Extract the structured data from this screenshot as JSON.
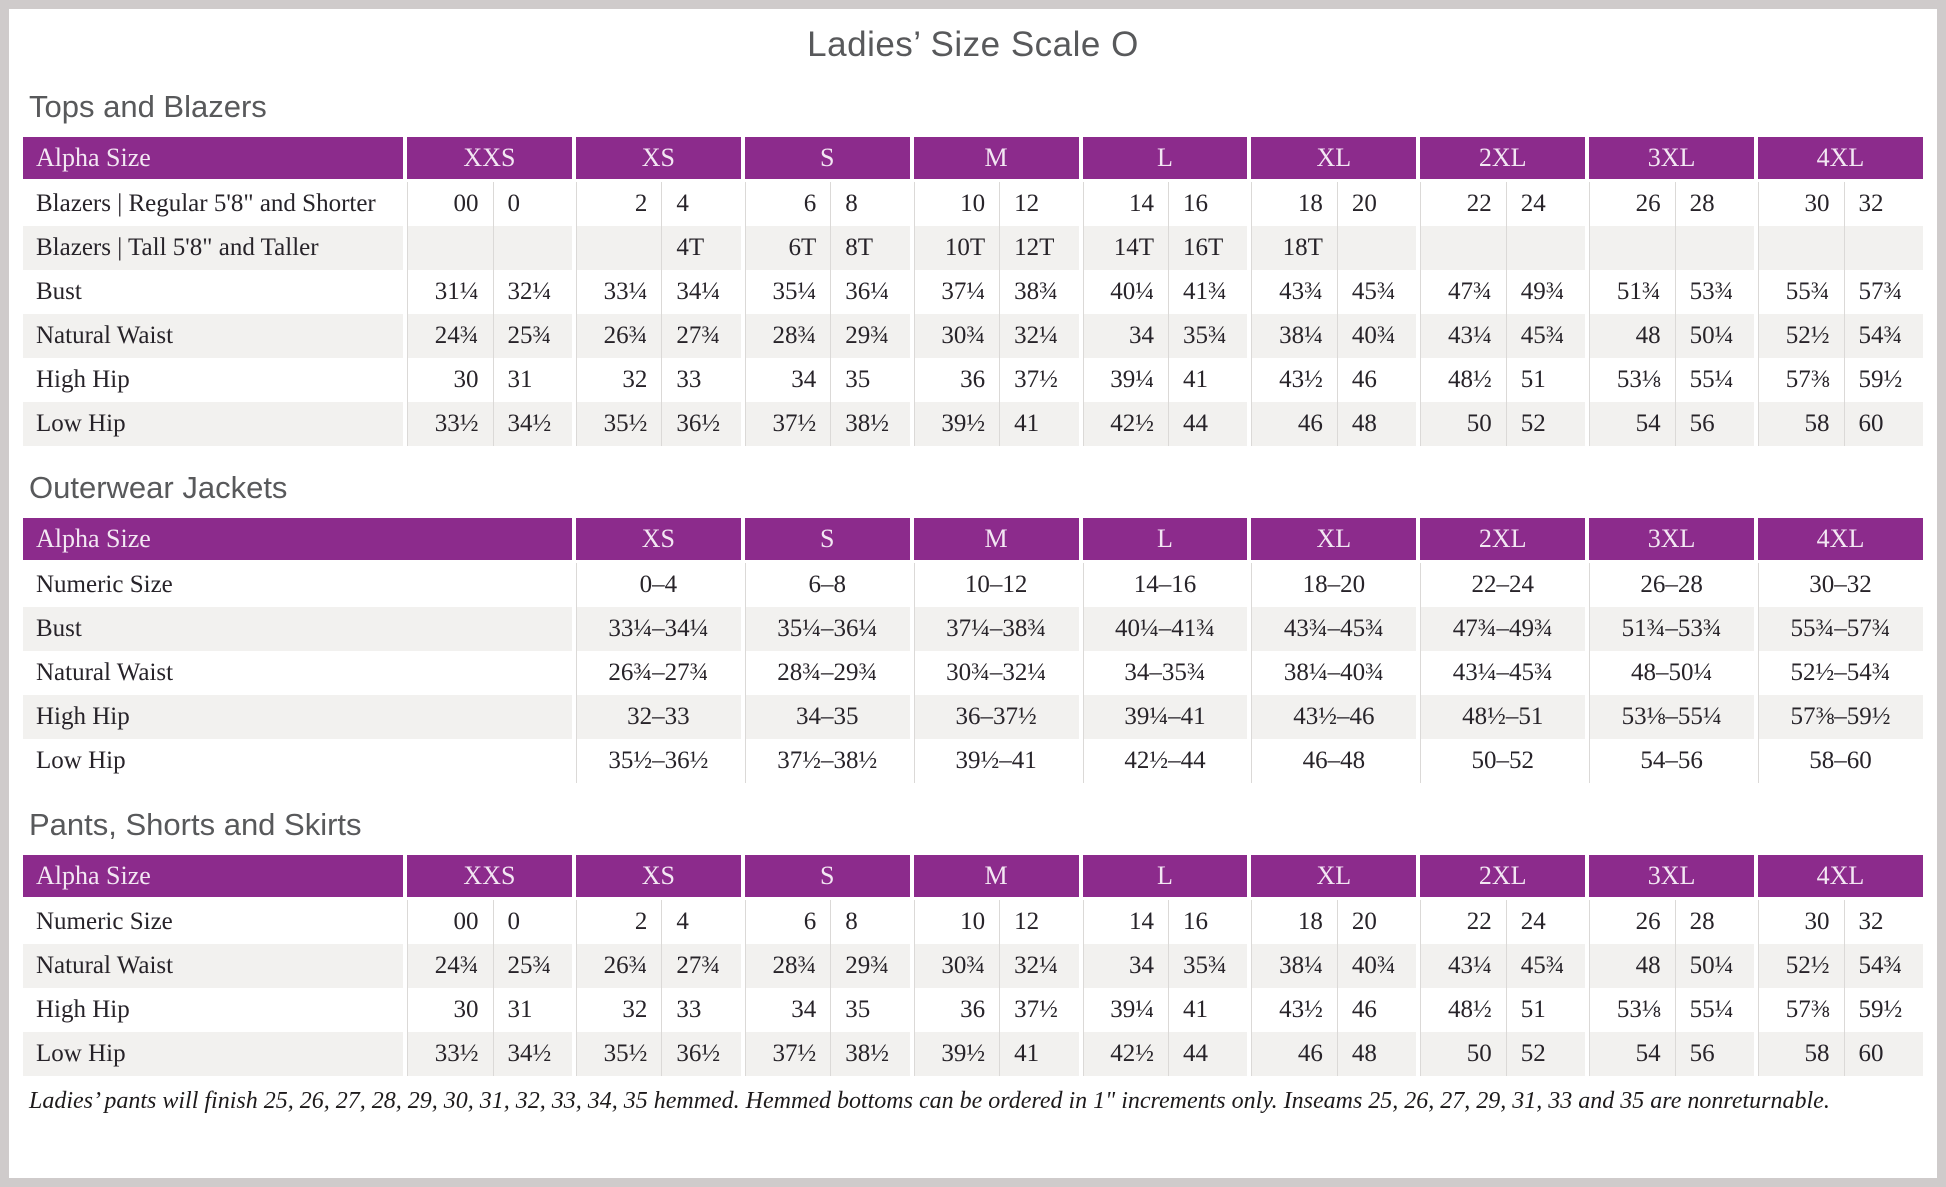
{
  "page": {
    "title": "Ladies’ Size Scale O",
    "footnote": "Ladies’ pants will finish 25, 26, 27, 28, 29, 30, 31, 32, 33, 34, 35 hemmed. Hemmed bottoms can be ordered in 1\" increments only. Inseams 25, 26, 27, 29, 31, 33 and 35 are nonreturnable."
  },
  "colors": {
    "header_purple": "#8c2b8c",
    "row_stripe": "#f2f1ef",
    "section_heading": "#58595b"
  },
  "tables": {
    "tops": {
      "section_title": "Tops and Blazers",
      "header_label": "Alpha Size",
      "sizes": [
        "XXS",
        "XS",
        "S",
        "M",
        "L",
        "XL",
        "2XL",
        "3XL",
        "4XL"
      ],
      "rows": [
        {
          "label": "Blazers | Regular 5'8\" and Shorter",
          "values": [
            "00",
            "0",
            "2",
            "4",
            "6",
            "8",
            "10",
            "12",
            "14",
            "16",
            "18",
            "20",
            "22",
            "24",
            "26",
            "28",
            "30",
            "32"
          ]
        },
        {
          "label": "Blazers | Tall 5'8\" and Taller",
          "values": [
            "",
            "",
            "",
            "4T",
            "6T",
            "8T",
            "10T",
            "12T",
            "14T",
            "16T",
            "18T",
            "",
            "",
            "",
            "",
            "",
            "",
            ""
          ]
        },
        {
          "label": "Bust",
          "values": [
            "31¼",
            "32¼",
            "33¼",
            "34¼",
            "35¼",
            "36¼",
            "37¼",
            "38¾",
            "40¼",
            "41¾",
            "43¾",
            "45¾",
            "47¾",
            "49¾",
            "51¾",
            "53¾",
            "55¾",
            "57¾"
          ]
        },
        {
          "label": "Natural Waist",
          "values": [
            "24¾",
            "25¾",
            "26¾",
            "27¾",
            "28¾",
            "29¾",
            "30¾",
            "32¼",
            "34",
            "35¾",
            "38¼",
            "40¾",
            "43¼",
            "45¾",
            "48",
            "50¼",
            "52½",
            "54¾"
          ]
        },
        {
          "label": "High Hip",
          "values": [
            "30",
            "31",
            "32",
            "33",
            "34",
            "35",
            "36",
            "37½",
            "39¼",
            "41",
            "43½",
            "46",
            "48½",
            "51",
            "53⅛",
            "55¼",
            "57⅜",
            "59½"
          ]
        },
        {
          "label": "Low Hip",
          "values": [
            "33½",
            "34½",
            "35½",
            "36½",
            "37½",
            "38½",
            "39½",
            "41",
            "42½",
            "44",
            "46",
            "48",
            "50",
            "52",
            "54",
            "56",
            "58",
            "60"
          ]
        }
      ]
    },
    "outerwear": {
      "section_title": "Outerwear Jackets",
      "header_label": "Alpha Size",
      "sizes": [
        "XS",
        "S",
        "M",
        "L",
        "XL",
        "2XL",
        "3XL",
        "4XL"
      ],
      "rows": [
        {
          "label": "Numeric Size",
          "values": [
            "0–4",
            "6–8",
            "10–12",
            "14–16",
            "18–20",
            "22–24",
            "26–28",
            "30–32"
          ]
        },
        {
          "label": "Bust",
          "values": [
            "33¼–34¼",
            "35¼–36¼",
            "37¼–38¾",
            "40¼–41¾",
            "43¾–45¾",
            "47¾–49¾",
            "51¾–53¾",
            "55¾–57¾"
          ]
        },
        {
          "label": "Natural Waist",
          "values": [
            "26¾–27¾",
            "28¾–29¾",
            "30¾–32¼",
            "34–35¾",
            "38¼–40¾",
            "43¼–45¾",
            "48–50¼",
            "52½–54¾"
          ]
        },
        {
          "label": "High Hip",
          "values": [
            "32–33",
            "34–35",
            "36–37½",
            "39¼–41",
            "43½–46",
            "48½–51",
            "53⅛–55¼",
            "57⅜–59½"
          ]
        },
        {
          "label": "Low Hip",
          "values": [
            "35½–36½",
            "37½–38½",
            "39½–41",
            "42½–44",
            "46–48",
            "50–52",
            "54–56",
            "58–60"
          ]
        }
      ]
    },
    "pants": {
      "section_title": "Pants, Shorts and Skirts",
      "header_label": "Alpha Size",
      "sizes": [
        "XXS",
        "XS",
        "S",
        "M",
        "L",
        "XL",
        "2XL",
        "3XL",
        "4XL"
      ],
      "rows": [
        {
          "label": "Numeric Size",
          "values": [
            "00",
            "0",
            "2",
            "4",
            "6",
            "8",
            "10",
            "12",
            "14",
            "16",
            "18",
            "20",
            "22",
            "24",
            "26",
            "28",
            "30",
            "32"
          ]
        },
        {
          "label": "Natural Waist",
          "values": [
            "24¾",
            "25¾",
            "26¾",
            "27¾",
            "28¾",
            "29¾",
            "30¾",
            "32¼",
            "34",
            "35¾",
            "38¼",
            "40¾",
            "43¼",
            "45¾",
            "48",
            "50¼",
            "52½",
            "54¾"
          ]
        },
        {
          "label": "High Hip",
          "values": [
            "30",
            "31",
            "32",
            "33",
            "34",
            "35",
            "36",
            "37½",
            "39¼",
            "41",
            "43½",
            "46",
            "48½",
            "51",
            "53⅛",
            "55¼",
            "57⅜",
            "59½"
          ]
        },
        {
          "label": "Low Hip",
          "values": [
            "33½",
            "34½",
            "35½",
            "36½",
            "37½",
            "38½",
            "39½",
            "41",
            "42½",
            "44",
            "46",
            "48",
            "50",
            "52",
            "54",
            "56",
            "58",
            "60"
          ]
        }
      ]
    }
  }
}
